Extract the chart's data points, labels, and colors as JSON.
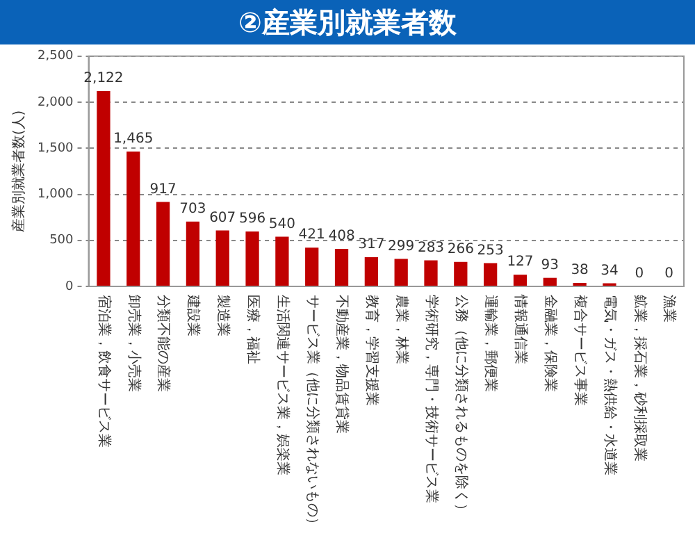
{
  "chart_data": {
    "type": "bar",
    "title": "②産業別就業者数",
    "ylabel": "産業別就業者数(人)",
    "categories": [
      "宿泊業，飲食サービス業",
      "卸売業，小売業",
      "分類不能の産業",
      "建設業",
      "製造業",
      "医療，福祉",
      "生活関連サービス業，娯楽業",
      "サービス業（他に分類されないもの）",
      "不動産業，物品賃貸業",
      "教育，学習支援業",
      "農業，林業",
      "学術研究，専門・技術サービス業",
      "公務（他に分類されるものを除く）",
      "運輸業，郵便業",
      "情報通信業",
      "金融業，保険業",
      "複合サービス事業",
      "電気・ガス・熱供給・水道業",
      "鉱業，採石業，砂利採取業",
      "漁業"
    ],
    "values": [
      2122,
      1465,
      917,
      703,
      607,
      596,
      540,
      421,
      408,
      317,
      299,
      283,
      266,
      253,
      127,
      93,
      38,
      34,
      0,
      0
    ],
    "value_labels": [
      "2,122",
      "1,465",
      "917",
      "703",
      "607",
      "596",
      "540",
      "421",
      "408",
      "317",
      "299",
      "283",
      "266",
      "253",
      "127",
      "93",
      "38",
      "34",
      "0",
      "0"
    ],
    "color": "#c00000",
    "ylim": [
      0,
      2500
    ],
    "yticks": [
      {
        "value": 0,
        "label": "0"
      },
      {
        "value": 500,
        "label": "500"
      },
      {
        "value": 1000,
        "label": "1,000"
      },
      {
        "value": 1500,
        "label": "1,500"
      },
      {
        "value": 2000,
        "label": "2,000"
      },
      {
        "value": 2500,
        "label": "2,500"
      }
    ],
    "grid": "y"
  }
}
